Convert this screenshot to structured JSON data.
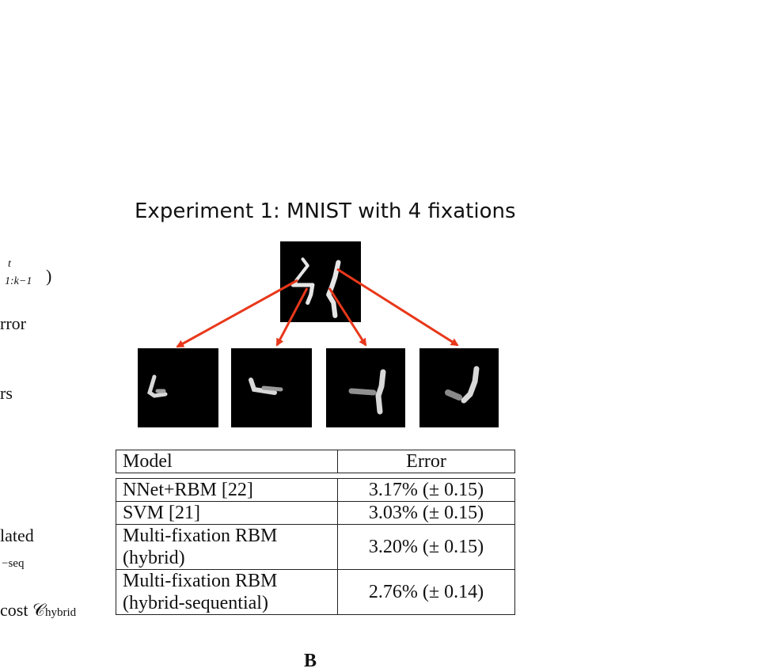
{
  "left_fragments": {
    "frag1_sup": "t",
    "frag1_sub": "1:k−1",
    "frag1_close": ")",
    "frag2": "rror",
    "frag3": "rs",
    "frag4": "lated",
    "frag5_sub": "−seq",
    "frag6": "cost 𝒞",
    "frag6_sub": "hybrid"
  },
  "figure": {
    "title": "Experiment 1: MNIST with 4 fixations",
    "panel_label": "B",
    "arrow_color": "#e8381b"
  },
  "table": {
    "headers": [
      "Model",
      "Error"
    ],
    "rows": [
      {
        "model": [
          "NNet+RBM [22]"
        ],
        "error": "3.17% (± 0.15)"
      },
      {
        "model": [
          "SVM [21]"
        ],
        "error": "3.03% (± 0.15)"
      },
      {
        "model": [
          "Multi-fixation RBM",
          "(hybrid)"
        ],
        "error": "3.20% (± 0.15)"
      },
      {
        "model": [
          "Multi-fixation RBM",
          "(hybrid-sequential)"
        ],
        "error": "2.76% (± 0.14)"
      }
    ]
  }
}
